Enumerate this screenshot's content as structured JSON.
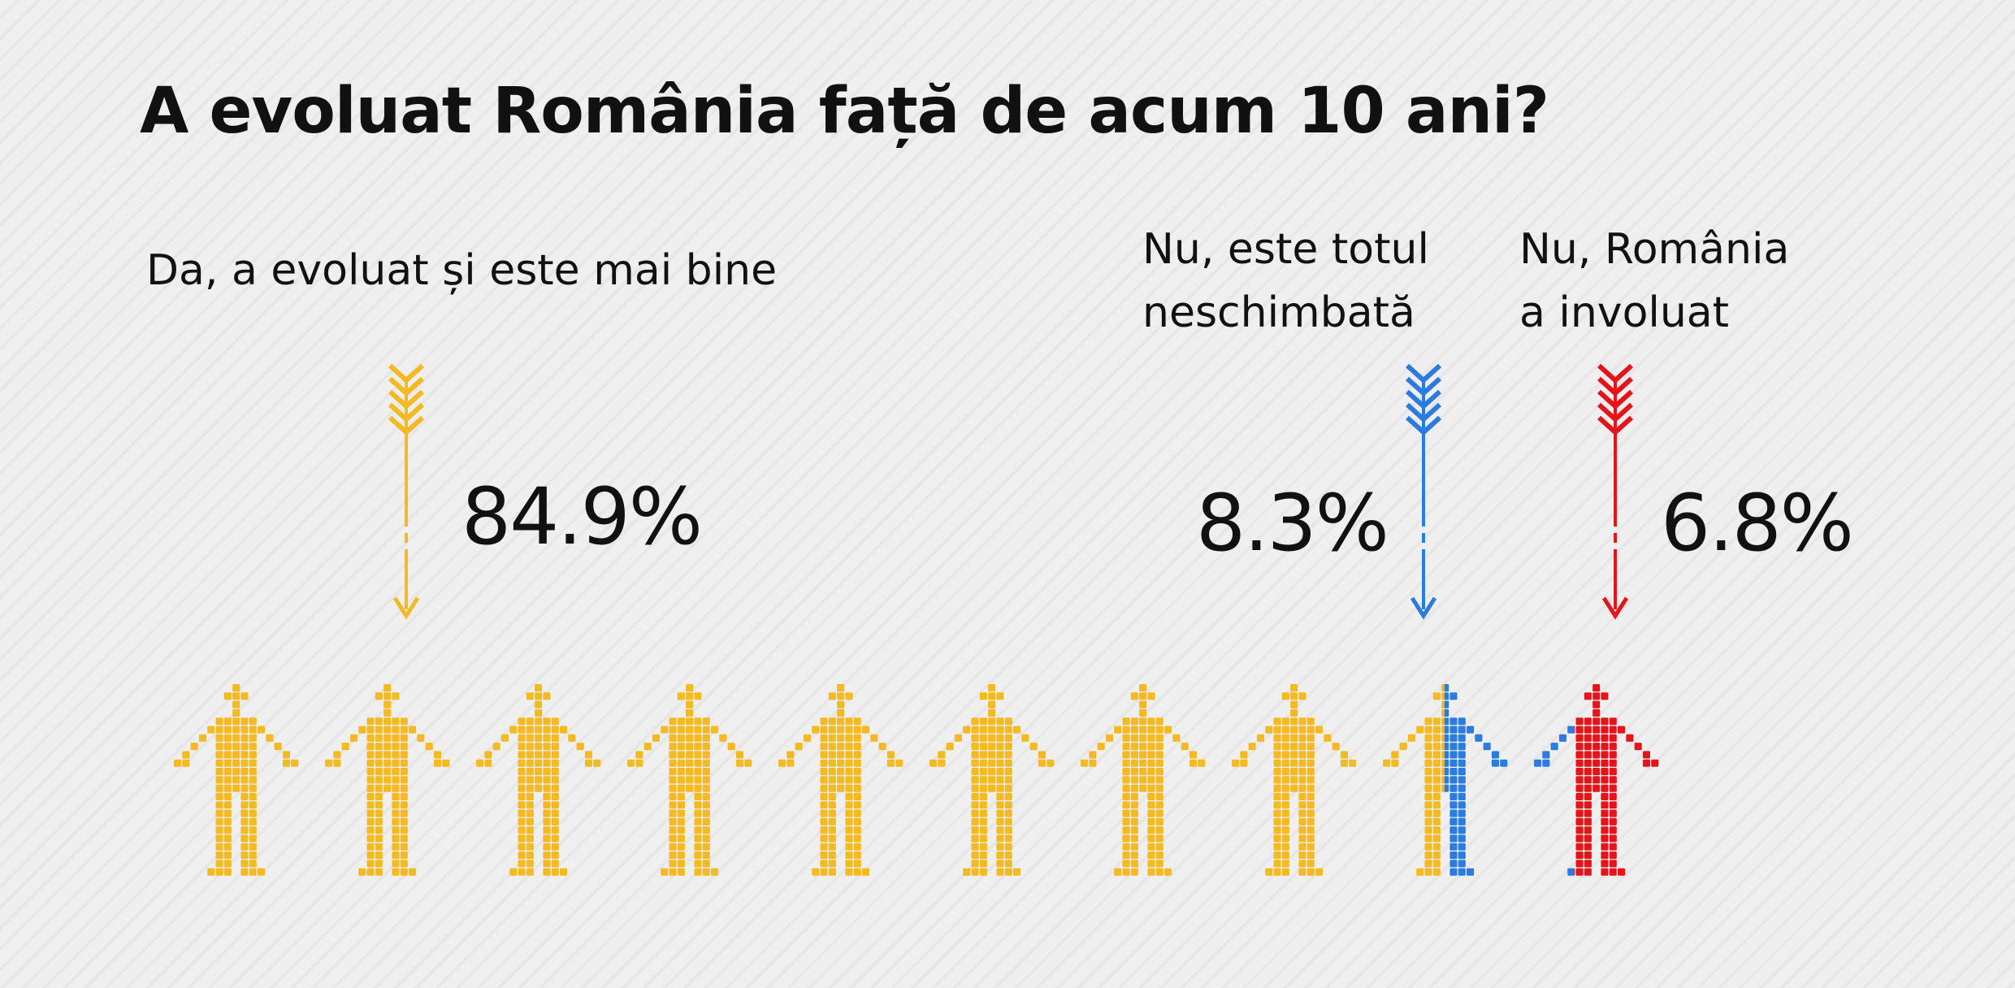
{
  "chart_data": {
    "type": "pictogram",
    "title": "A evoluat România față de acum 10 ani?",
    "categories": [
      {
        "label_lines": [
          "Da, a evoluat și este mai bine"
        ],
        "value": 84.9,
        "value_label": "84.9%",
        "color": "#f5b921"
      },
      {
        "label_lines": [
          "Nu, este totul",
          "neschimbată"
        ],
        "value": 8.3,
        "value_label": "8.3%",
        "color": "#2b7be0"
      },
      {
        "label_lines": [
          "Nu, România",
          "a involuat"
        ],
        "value": 6.8,
        "value_label": "6.8%",
        "color": "#e5141b"
      }
    ],
    "figures_total": 10
  }
}
